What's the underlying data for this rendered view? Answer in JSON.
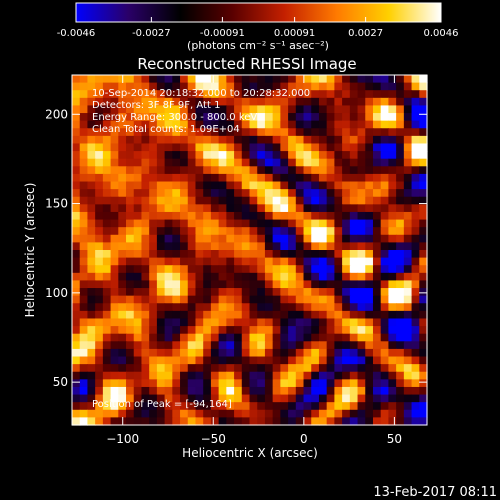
{
  "colorbar": {
    "ticks": [
      "-0.0046",
      "-0.0027",
      "-0.00091",
      "0.00091",
      "0.0027",
      "0.0046"
    ],
    "tick_values": [
      -0.0046,
      -0.0027,
      -0.00091,
      0.00091,
      0.0027,
      0.0046
    ],
    "range": [
      -0.0046,
      0.0046
    ],
    "units": "(photons cm⁻² s⁻¹ asec⁻²)",
    "colors": [
      "#0000ff",
      "#2a0068",
      "#000000",
      "#5a0000",
      "#c42000",
      "#ff7a00",
      "#ffd000",
      "#ffffff"
    ]
  },
  "chart_data": {
    "type": "heatmap",
    "title": "Reconstructed RHESSI Image",
    "xlabel": "Heliocentric X (arcsec)",
    "ylabel": "Heliocentric Y (arcsec)",
    "xlim": [
      -128,
      68
    ],
    "ylim": [
      26,
      222
    ],
    "xticks": [
      -100,
      -50,
      0,
      50
    ],
    "yticks": [
      50,
      100,
      150,
      200
    ],
    "xtick_labels": [
      "−100",
      "−50",
      "0",
      "50"
    ],
    "ytick_labels": [
      "50",
      "100",
      "150",
      "200"
    ],
    "annotations": [
      "10-Sep-2014 20:18:32.000 to 20:28:32.000",
      "Detectors: 3F 8F 9F, Att 1",
      "Energy Range: 300.0 - 800.0 keV",
      "Clean     Total counts: 1.09E+04"
    ],
    "peak_label": "Position of Peak = [-94,164]",
    "peak": [
      -94,
      164
    ]
  },
  "footer_timestamp": "13-Feb-2017 08:11"
}
